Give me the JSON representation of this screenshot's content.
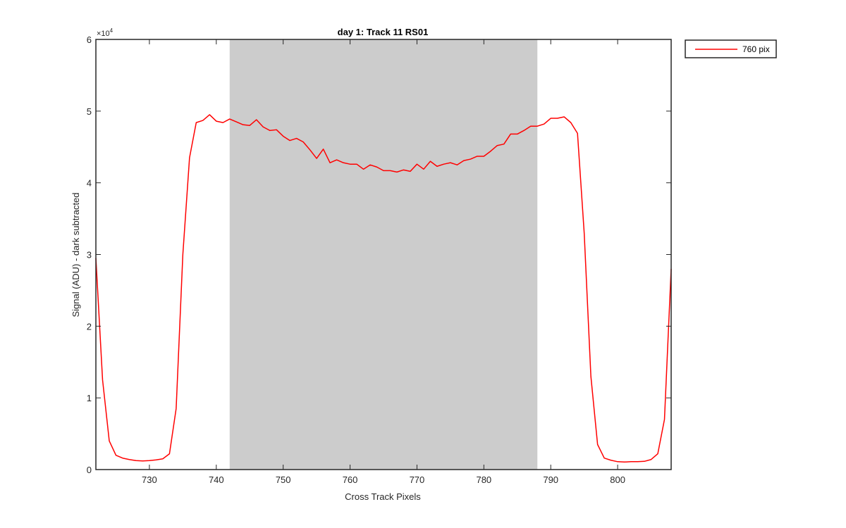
{
  "chart_data": {
    "type": "line",
    "title": "day 1: Track 11  RS01",
    "xlabel": "Cross Track Pixels",
    "ylabel": "Signal (ADU) - dark subtracted",
    "xlim": [
      722,
      808
    ],
    "ylim": [
      0,
      60000
    ],
    "x_ticks": [
      730,
      740,
      750,
      760,
      770,
      780,
      790,
      800
    ],
    "y_ticks": [
      0,
      1,
      2,
      3,
      4,
      5,
      6
    ],
    "y_exponent_label": "×10",
    "y_exponent_power": "4",
    "y_tick_multiplier": 10000,
    "grid": false,
    "legend_position": "outside-top-right",
    "shaded_region": {
      "x": [
        742,
        788
      ],
      "color": "#cccccc"
    },
    "series": [
      {
        "name": "760 pix",
        "color": "#ff0000",
        "x": [
          722,
          723,
          724,
          725,
          726,
          727,
          728,
          729,
          730,
          731,
          732,
          733,
          734,
          735,
          736,
          737,
          738,
          739,
          740,
          741,
          742,
          743,
          744,
          745,
          746,
          747,
          748,
          749,
          750,
          751,
          752,
          753,
          754,
          755,
          756,
          757,
          758,
          759,
          760,
          761,
          762,
          763,
          764,
          765,
          766,
          767,
          768,
          769,
          770,
          771,
          772,
          773,
          774,
          775,
          776,
          777,
          778,
          779,
          780,
          781,
          782,
          783,
          784,
          785,
          786,
          787,
          788,
          789,
          790,
          791,
          792,
          793,
          794,
          795,
          796,
          797,
          798,
          799,
          800,
          801,
          802,
          803,
          804,
          805,
          806,
          807,
          808
        ],
        "y": [
          29500,
          12500,
          4000,
          2000,
          1600,
          1400,
          1250,
          1200,
          1250,
          1350,
          1500,
          2200,
          8500,
          30000,
          43500,
          48400,
          48700,
          49500,
          48600,
          48400,
          48900,
          48500,
          48100,
          48000,
          48800,
          47800,
          47300,
          47400,
          46500,
          45900,
          46200,
          45700,
          44600,
          43400,
          44700,
          42800,
          43200,
          42800,
          42600,
          42600,
          41900,
          42500,
          42200,
          41700,
          41700,
          41500,
          41800,
          41600,
          42600,
          41900,
          43000,
          42300,
          42600,
          42800,
          42500,
          43100,
          43300,
          43700,
          43700,
          44400,
          45200,
          45400,
          46800,
          46800,
          47300,
          47900,
          47900,
          48200,
          49000,
          49000,
          49200,
          48400,
          46900,
          33000,
          13000,
          3500,
          1600,
          1300,
          1100,
          1050,
          1100,
          1100,
          1150,
          1400,
          2200,
          7000,
          28000
        ]
      }
    ]
  }
}
